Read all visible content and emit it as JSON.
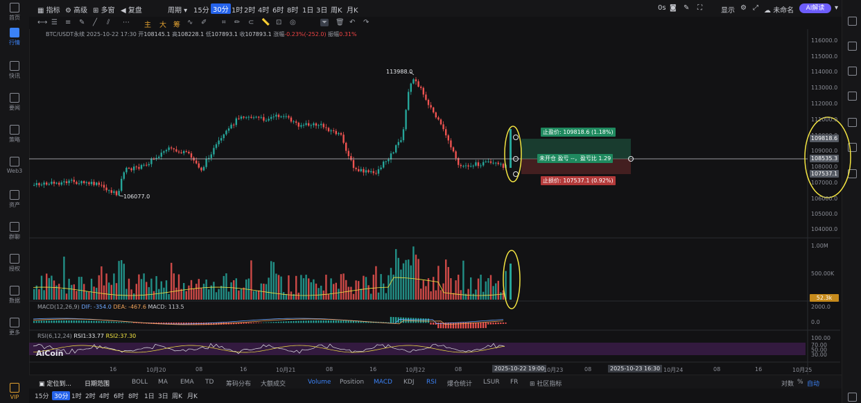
{
  "sidebar_left": {
    "items": [
      {
        "label": "首页",
        "icon": "home-icon"
      },
      {
        "label": "行情",
        "icon": "chart-icon"
      },
      {
        "label": "快讯",
        "icon": "news-icon"
      },
      {
        "label": "要闻",
        "icon": "article-icon"
      },
      {
        "label": "策略",
        "icon": "strategy-icon"
      },
      {
        "label": "Web3",
        "icon": "web3-icon"
      },
      {
        "label": "资产",
        "icon": "wallet-icon"
      },
      {
        "label": "群聊",
        "icon": "chat-icon"
      },
      {
        "label": "授权",
        "icon": "key-icon"
      },
      {
        "label": "数据",
        "icon": "data-icon"
      },
      {
        "label": "更多",
        "icon": "more-icon"
      },
      {
        "label": "VIP",
        "icon": "vip-icon"
      }
    ]
  },
  "top_toolbar": {
    "indicators": "指标",
    "advanced": "高级",
    "multi_window": "多窗",
    "replay": "复盘",
    "period": "周期",
    "periods": [
      "15分",
      "30分",
      "1时",
      "2时",
      "4时",
      "6时",
      "8时",
      "1日",
      "3日",
      "周K",
      "月K"
    ],
    "selected_period": "30分",
    "latency": "0s",
    "display": "显示",
    "unnamed": "未命名",
    "ai_button": "AI解读"
  },
  "draw_toolbar": {
    "main": "主",
    "big": "大",
    "chips": "筹"
  },
  "chart_info": {
    "symbol": "BTC/USDT永续",
    "time": "2025-10-22 17:30",
    "open_label": "开",
    "open": "108145.1",
    "high_label": "高",
    "high": "108228.1",
    "low_label": "低",
    "low": "107893.1",
    "close_label": "收",
    "close": "107893.1",
    "change_label": "涨幅",
    "change": "-0.23%(-252.0)",
    "amplitude_label": "振幅",
    "amplitude": "0.31%"
  },
  "annotations": {
    "high_marker": "113988.0",
    "low_marker": "106077.0",
    "take_profit": "止盈价: 109818.6 (1.18%)",
    "position": "未开仓 盈亏 --，盈亏比 1.29",
    "stop_loss": "止损价: 107537.1 (0.92%)"
  },
  "price_axis": {
    "ticks": [
      "116000.0",
      "115000.0",
      "114000.0",
      "113000.0",
      "112000.0",
      "111000.0",
      "110000.0",
      "109000.0",
      "108000.0",
      "107000.0",
      "106000.0",
      "105000.0",
      "104000.0"
    ],
    "tag_take_profit": "109818.6",
    "tag_current": "108535.3",
    "tag_stop_loss": "107537.1"
  },
  "volume_panel": {
    "axis": [
      "1.00M",
      "500.00K"
    ],
    "current_tag": "52.3k"
  },
  "macd_panel": {
    "label": "MACD(12,26,9)",
    "dif": "DIF: -354.0",
    "dea": "DEA: -467.6",
    "macd": "MACD: 113.5",
    "axis": [
      "2000.0",
      "0.0"
    ]
  },
  "rsi_panel": {
    "label": "RSI(6,12,24)",
    "rsi1": "RSI1:33.77",
    "rsi2": "RSI2:37.30",
    "axis": [
      "100.00",
      "70.00",
      "50.00",
      "30.00"
    ]
  },
  "time_axis": {
    "ticks": [
      "16",
      "10月20",
      "08",
      "16",
      "10月21",
      "08",
      "16",
      "10月22",
      "08",
      "10月23",
      "08",
      "10月24",
      "08",
      "16",
      "10月25"
    ],
    "crosshair_time": "2025-10-22 19:00",
    "end_time": "2025-10-23 16:30"
  },
  "logo": "AiCoin",
  "bottom_bar": {
    "locate": "定位到...",
    "date_range": "日期范围",
    "indicators": [
      "BOLL",
      "MA",
      "EMA",
      "TD",
      "筹码分布",
      "大额成交",
      "Volume",
      "Position",
      "MACD",
      "KDJ",
      "RSI",
      "爆仓统计",
      "LSUR",
      "FR",
      "社区指标"
    ],
    "active_indicators": [
      "Volume",
      "MACD",
      "RSI"
    ],
    "log": "对数",
    "percent": "%",
    "auto": "自动"
  },
  "period_bar": {
    "periods": [
      "15分",
      "30分",
      "1时",
      "2时",
      "4时",
      "6时",
      "8时",
      "1日",
      "3日",
      "周K",
      "月K"
    ],
    "selected": "30分"
  },
  "colors": {
    "up": "#26a69a",
    "down": "#ef5350",
    "accent": "#2563eb",
    "highlight": "#f5e642"
  }
}
